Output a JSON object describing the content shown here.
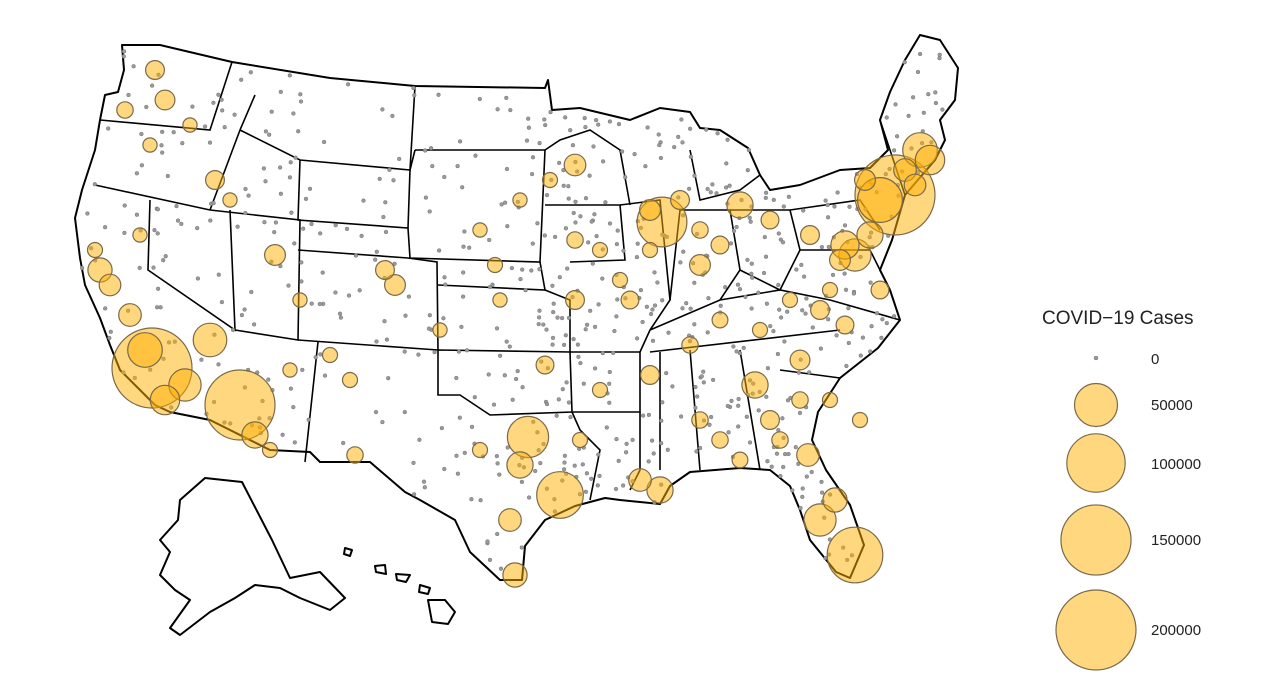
{
  "legend": {
    "title": "COVID−19 Cases",
    "entries": [
      {
        "label": "0",
        "value": 0
      },
      {
        "label": "50000",
        "value": 50000
      },
      {
        "label": "100000",
        "value": 100000
      },
      {
        "label": "150000",
        "value": 150000
      },
      {
        "label": "200000",
        "value": 200000
      }
    ]
  },
  "colors": {
    "bubble_fill": "#ffb000",
    "bubble_stroke": "#7a6a4a",
    "state_border": "#000000",
    "background": "#ffffff"
  },
  "map": {
    "type": "proportional-symbol map",
    "region": "United States counties",
    "notable_hotspots": [
      {
        "area": "New York City",
        "approx_cases": 200000
      },
      {
        "area": "Los Angeles",
        "approx_cases": 200000
      },
      {
        "area": "Phoenix / Maricopa",
        "approx_cases": 150000
      },
      {
        "area": "Miami-Dade",
        "approx_cases": 100000
      },
      {
        "area": "Chicago / Cook",
        "approx_cases": 100000
      },
      {
        "area": "Houston / Harris",
        "approx_cases": 60000
      },
      {
        "area": "Dallas",
        "approx_cases": 40000
      }
    ]
  }
}
